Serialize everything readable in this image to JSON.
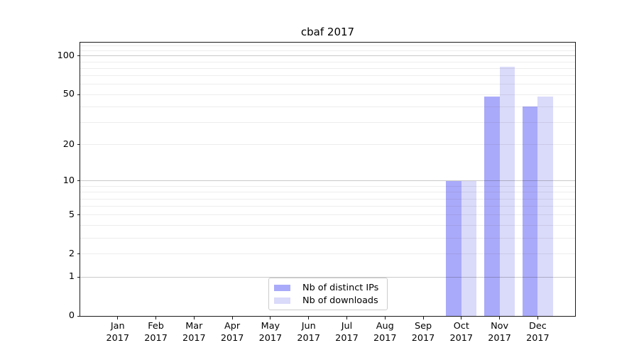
{
  "title": "cbaf 2017",
  "chart_data": {
    "type": "bar",
    "title": "cbaf 2017",
    "categories": [
      "Jan 2017",
      "Feb 2017",
      "Mar 2017",
      "Apr 2017",
      "May 2017",
      "Jun 2017",
      "Jul 2017",
      "Aug 2017",
      "Sep 2017",
      "Oct 2017",
      "Nov 2017",
      "Dec 2017"
    ],
    "x_tick_months": [
      "Jan",
      "Feb",
      "Mar",
      "Apr",
      "May",
      "Jun",
      "Jul",
      "Aug",
      "Sep",
      "Oct",
      "Nov",
      "Dec"
    ],
    "x_tick_year": "2017",
    "series": [
      {
        "name": "Nb of distinct IPs",
        "color": "#aaaafa",
        "values": [
          0,
          0,
          0,
          0,
          0,
          0,
          0,
          0,
          0,
          10,
          48,
          40
        ]
      },
      {
        "name": "Nb of downloads",
        "color": "#dadafa",
        "values": [
          0,
          0,
          0,
          0,
          0,
          0,
          0,
          0,
          0,
          10,
          83,
          48
        ]
      }
    ],
    "yscale": "log1p",
    "ylim": [
      0,
      127.3
    ],
    "y_tick_labels": [
      0,
      1,
      2,
      5,
      10,
      20,
      50,
      100
    ],
    "grid_major": [
      1,
      10,
      100
    ],
    "grid_minor": [
      2,
      3,
      4,
      5,
      6,
      7,
      8,
      9,
      20,
      30,
      40,
      50,
      60,
      70,
      80,
      90,
      110,
      120
    ],
    "grid": true,
    "legend_position": "lower center",
    "xlabel": "",
    "ylabel": ""
  }
}
